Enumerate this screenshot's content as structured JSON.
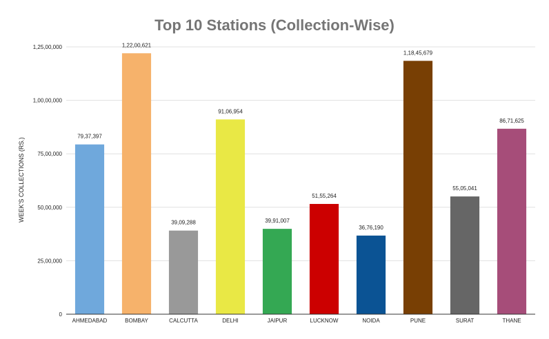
{
  "chart_data": {
    "type": "bar",
    "title": "Top 10 Stations (Collection-Wise)",
    "xlabel": "",
    "ylabel": "WEEK'S COLLECTIONS (RS.)",
    "ylim": [
      0,
      125000000
    ],
    "yticks": [
      {
        "value": 0,
        "label": "0"
      },
      {
        "value": 25000000,
        "label": "25,00,000"
      },
      {
        "value": 50000000,
        "label": "50,00,000"
      },
      {
        "value": 75000000,
        "label": "75,00,000"
      },
      {
        "value": 100000000,
        "label": "1,00,00,000"
      },
      {
        "value": 125000000,
        "label": "1,25,00,000"
      }
    ],
    "grid": true,
    "legend": "none",
    "categories": [
      "AHMEDABAD",
      "BOMBAY",
      "CALCUTTA",
      "DELHI",
      "JAIPUR",
      "LUCKNOW",
      "NOIDA",
      "PUNE",
      "SURAT",
      "THANE"
    ],
    "values": [
      7937397,
      12200621,
      3909288,
      9106954,
      3991007,
      5155264,
      3676190,
      11845679,
      5505041,
      8671625
    ],
    "value_scale": 10,
    "data_labels": [
      "79,37,397",
      "1,22,00,621",
      "39,09,288",
      "91,06,954",
      "39,91,007",
      "51,55,264",
      "36,76,190",
      "1,18,45,679",
      "55,05,041",
      "86,71,625"
    ],
    "colors": [
      "#6fa8dc",
      "#f6b26b",
      "#999999",
      "#e9e845",
      "#34a853",
      "#cc0000",
      "#0b5394",
      "#783f04",
      "#666666",
      "#a64d79"
    ]
  }
}
